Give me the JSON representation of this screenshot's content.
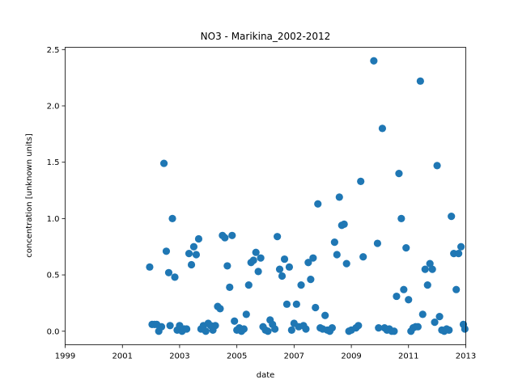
{
  "chart_data": {
    "type": "scatter",
    "title": "NO3 - Marikina_2002-2012",
    "xlabel": "date",
    "ylabel": "concentration [unknown units]",
    "xlim": [
      "1999-01-01",
      "2013-01-01"
    ],
    "ylim": [
      -0.12,
      2.52
    ],
    "xticks": [
      "1999",
      "2001",
      "2003",
      "2005",
      "2007",
      "2009",
      "2011",
      "2013"
    ],
    "yticks": [
      "0.0",
      "0.5",
      "1.0",
      "1.5",
      "2.0",
      "2.5"
    ],
    "grid": false,
    "marker_color": "#1f77b4",
    "series": [
      {
        "points": [
          [
            "2001-12-15",
            0.57
          ],
          [
            "2002-01-15",
            0.06
          ],
          [
            "2002-02-15",
            0.06
          ],
          [
            "2002-03-15",
            0.06
          ],
          [
            "2002-04-10",
            0.0
          ],
          [
            "2002-05-15",
            0.04
          ],
          [
            "2002-06-15",
            1.49
          ],
          [
            "2002-07-15",
            0.71
          ],
          [
            "2002-08-15",
            0.52
          ],
          [
            "2002-09-01",
            0.05
          ],
          [
            "2002-10-01",
            1.0
          ],
          [
            "2002-11-01",
            0.48
          ],
          [
            "2002-12-01",
            0.01
          ],
          [
            "2003-01-01",
            0.05
          ],
          [
            "2003-02-01",
            0.0
          ],
          [
            "2003-03-01",
            0.02
          ],
          [
            "2003-04-01",
            0.02
          ],
          [
            "2003-05-01",
            0.69
          ],
          [
            "2003-06-01",
            0.59
          ],
          [
            "2003-07-01",
            0.75
          ],
          [
            "2003-08-01",
            0.68
          ],
          [
            "2003-09-01",
            0.82
          ],
          [
            "2003-10-01",
            0.02
          ],
          [
            "2003-11-01",
            0.05
          ],
          [
            "2003-12-01",
            0.0
          ],
          [
            "2004-01-01",
            0.07
          ],
          [
            "2004-02-01",
            0.05
          ],
          [
            "2004-03-01",
            0.01
          ],
          [
            "2004-04-01",
            0.05
          ],
          [
            "2004-05-01",
            0.22
          ],
          [
            "2004-06-01",
            0.2
          ],
          [
            "2004-07-01",
            0.85
          ],
          [
            "2004-08-01",
            0.83
          ],
          [
            "2004-09-01",
            0.58
          ],
          [
            "2004-10-01",
            0.39
          ],
          [
            "2004-11-01",
            0.85
          ],
          [
            "2004-12-01",
            0.09
          ],
          [
            "2005-01-01",
            0.01
          ],
          [
            "2005-02-01",
            0.03
          ],
          [
            "2005-03-01",
            0.0
          ],
          [
            "2005-04-01",
            0.02
          ],
          [
            "2005-05-01",
            0.15
          ],
          [
            "2005-06-01",
            0.41
          ],
          [
            "2005-07-01",
            0.61
          ],
          [
            "2005-08-01",
            0.63
          ],
          [
            "2005-09-01",
            0.7
          ],
          [
            "2005-10-01",
            0.53
          ],
          [
            "2005-11-01",
            0.65
          ],
          [
            "2005-12-01",
            0.04
          ],
          [
            "2006-01-01",
            0.01
          ],
          [
            "2006-02-01",
            0.0
          ],
          [
            "2006-03-01",
            0.1
          ],
          [
            "2006-04-01",
            0.06
          ],
          [
            "2006-05-01",
            0.02
          ],
          [
            "2006-06-01",
            0.84
          ],
          [
            "2006-07-01",
            0.55
          ],
          [
            "2006-08-01",
            0.49
          ],
          [
            "2006-09-01",
            0.64
          ],
          [
            "2006-10-01",
            0.24
          ],
          [
            "2006-11-01",
            0.57
          ],
          [
            "2006-12-01",
            0.01
          ],
          [
            "2007-01-01",
            0.07
          ],
          [
            "2007-02-01",
            0.24
          ],
          [
            "2007-03-01",
            0.04
          ],
          [
            "2007-04-01",
            0.41
          ],
          [
            "2007-05-01",
            0.05
          ],
          [
            "2007-06-01",
            0.02
          ],
          [
            "2007-07-01",
            0.61
          ],
          [
            "2007-08-01",
            0.46
          ],
          [
            "2007-09-01",
            0.65
          ],
          [
            "2007-10-01",
            0.21
          ],
          [
            "2007-11-01",
            1.13
          ],
          [
            "2007-12-01",
            0.03
          ],
          [
            "2008-01-01",
            0.02
          ],
          [
            "2008-02-01",
            0.14
          ],
          [
            "2008-03-01",
            0.01
          ],
          [
            "2008-04-01",
            0.0
          ],
          [
            "2008-05-01",
            0.03
          ],
          [
            "2008-06-01",
            0.79
          ],
          [
            "2008-07-01",
            0.68
          ],
          [
            "2008-08-01",
            1.19
          ],
          [
            "2008-09-01",
            0.94
          ],
          [
            "2008-10-01",
            0.95
          ],
          [
            "2008-11-01",
            0.6
          ],
          [
            "2008-12-01",
            0.0
          ],
          [
            "2009-01-01",
            0.01
          ],
          [
            "2009-03-01",
            0.03
          ],
          [
            "2009-04-01",
            0.05
          ],
          [
            "2009-05-01",
            1.33
          ],
          [
            "2009-06-01",
            0.66
          ],
          [
            "2009-10-15",
            2.4
          ],
          [
            "2009-12-01",
            0.78
          ],
          [
            "2009-12-15",
            0.03
          ],
          [
            "2010-02-01",
            1.8
          ],
          [
            "2010-03-01",
            0.03
          ],
          [
            "2010-04-01",
            0.01
          ],
          [
            "2010-05-01",
            0.02
          ],
          [
            "2010-06-01",
            0.0
          ],
          [
            "2010-07-01",
            0.0
          ],
          [
            "2010-08-01",
            0.31
          ],
          [
            "2010-09-01",
            1.4
          ],
          [
            "2010-10-01",
            1.0
          ],
          [
            "2010-11-01",
            0.37
          ],
          [
            "2010-12-01",
            0.74
          ],
          [
            "2011-01-01",
            0.28
          ],
          [
            "2011-02-01",
            0.0
          ],
          [
            "2011-03-01",
            0.03
          ],
          [
            "2011-04-01",
            0.04
          ],
          [
            "2011-05-01",
            0.04
          ],
          [
            "2011-06-01",
            2.22
          ],
          [
            "2011-07-01",
            0.15
          ],
          [
            "2011-08-01",
            0.55
          ],
          [
            "2011-09-01",
            0.41
          ],
          [
            "2011-10-01",
            0.6
          ],
          [
            "2011-11-01",
            0.55
          ],
          [
            "2011-12-01",
            0.08
          ],
          [
            "2012-01-01",
            1.47
          ],
          [
            "2012-02-01",
            0.13
          ],
          [
            "2012-03-01",
            0.01
          ],
          [
            "2012-04-01",
            0.0
          ],
          [
            "2012-05-01",
            0.02
          ],
          [
            "2012-06-01",
            0.01
          ],
          [
            "2012-07-01",
            1.02
          ],
          [
            "2012-08-01",
            0.69
          ],
          [
            "2012-09-01",
            0.37
          ],
          [
            "2012-10-01",
            0.69
          ],
          [
            "2012-11-01",
            0.75
          ],
          [
            "2012-12-01",
            0.06
          ],
          [
            "2012-12-20",
            0.02
          ]
        ]
      }
    ]
  }
}
